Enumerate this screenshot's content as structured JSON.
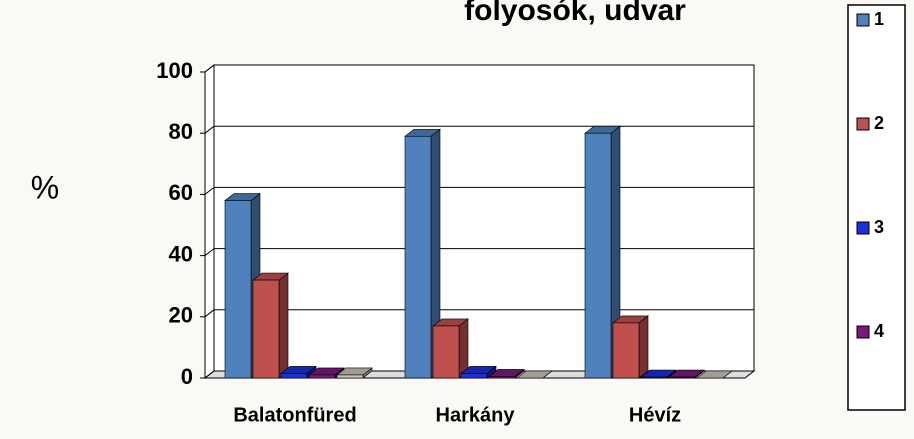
{
  "chart_data": {
    "type": "bar3d",
    "title": "folyosók, udvar",
    "y_label": "%",
    "categories": [
      "Balatonfüred",
      "Harkány",
      "Hévíz"
    ],
    "series": [
      {
        "name": "1",
        "color": "#4f81bd",
        "values": [
          58,
          79,
          80
        ]
      },
      {
        "name": "2",
        "color": "#c0504d",
        "values": [
          32,
          17,
          18
        ]
      },
      {
        "name": "3",
        "color": "#1a2fe0",
        "values": [
          1.5,
          1.5,
          0.3
        ]
      },
      {
        "name": "4",
        "color": "#7a1a7a",
        "values": [
          1,
          0.5,
          0.3
        ]
      },
      {
        "color": "#c8c4b8",
        "values": [
          1,
          0,
          0
        ]
      }
    ],
    "ylim": [
      0,
      100
    ],
    "yticks": [
      0,
      20,
      40,
      60,
      80,
      100
    ],
    "grid": true
  }
}
